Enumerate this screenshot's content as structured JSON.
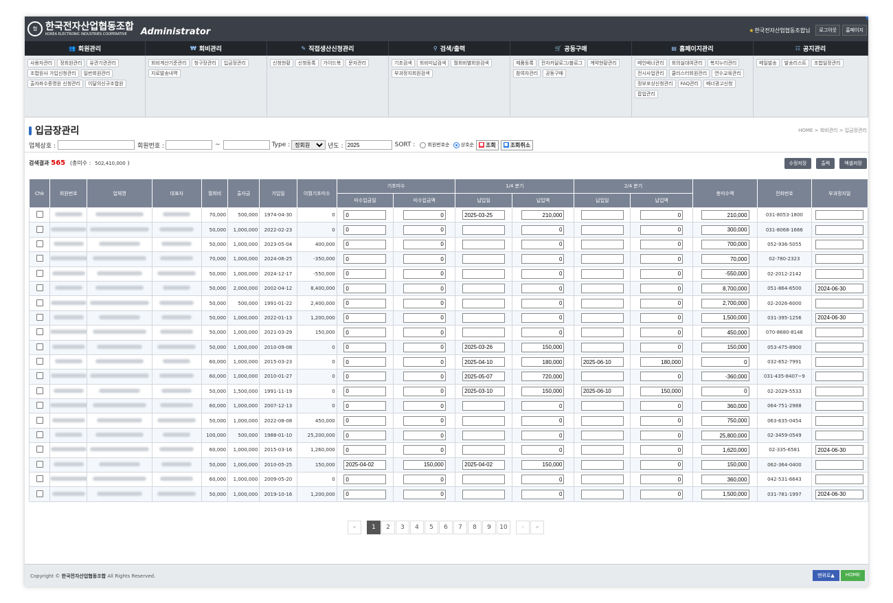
{
  "header": {
    "org_kor": "한국전자산업협동조합",
    "org_eng": "KOREA ELECTRONIC INDUSTRIES COOPERATIVE",
    "logo_mark": "협",
    "admin": "Administrator",
    "user": "한국전자산업협동조합님",
    "logout": "로그아웃",
    "home": "홈페이지"
  },
  "nav": [
    {
      "label": "회원관리",
      "icon": "users-icon",
      "glyph": "👥",
      "w": 176,
      "items": [
        {
          "t": "사용자관리"
        },
        {
          "t": "정회원관리"
        },
        {
          "t": "유관기관관리"
        },
        {
          "t": "조합원사 가입신청관리"
        },
        {
          "t": "일반회원관리"
        },
        {
          "t": "출자좌수증명원 신청관리"
        },
        {
          "t": "이달의신규조합원"
        }
      ]
    },
    {
      "label": "회비관리",
      "icon": "money-icon",
      "glyph": "₩",
      "w": 177,
      "items": [
        {
          "t": "회비계산기준관리"
        },
        {
          "t": "청구장관리"
        },
        {
          "t": "입금장관리"
        },
        {
          "t": "지로발송내역"
        }
      ]
    },
    {
      "label": "직접생산신청관리",
      "icon": "pencil-icon",
      "glyph": "✎",
      "w": 177,
      "items": [
        {
          "t": "신청현황"
        },
        {
          "t": "신청등록"
        },
        {
          "t": "가이드북"
        },
        {
          "t": "문자관리"
        }
      ]
    },
    {
      "label": "검색/출력",
      "icon": "search-icon",
      "glyph": "⚲",
      "w": 177,
      "items": [
        {
          "t": "기초검색"
        },
        {
          "t": "회비미납검색"
        },
        {
          "t": "월회비별회원검색"
        },
        {
          "t": "부과정지회원검색"
        }
      ]
    },
    {
      "label": "공동구매",
      "icon": "cart-icon",
      "glyph": "🛒",
      "w": 177,
      "items": [
        {
          "t": "제품등록"
        },
        {
          "t": "전자카달로그/블로그"
        },
        {
          "t": "계약현황관리"
        },
        {
          "t": "참여자관리"
        },
        {
          "t": "공동구매"
        }
      ]
    },
    {
      "label": "홈페이지관리",
      "icon": "monitor-icon",
      "glyph": "▤",
      "w": 177,
      "items": [
        {
          "t": "메인배너관리"
        },
        {
          "t": "회의실대여관리"
        },
        {
          "t": "복지누리관리"
        },
        {
          "t": "전시사업관리"
        },
        {
          "t": "클러스터회원관리"
        },
        {
          "t": "연수교육관리"
        },
        {
          "t": "정부포상신청관리"
        },
        {
          "t": "FAQ관리"
        },
        {
          "t": "배너광고신청",
          "badge": "2"
        },
        {
          "t": "팝업관리"
        }
      ]
    },
    {
      "label": "공지관리",
      "icon": "list-icon",
      "glyph": "☷",
      "w": 167,
      "items": [
        {
          "t": "메일발송"
        },
        {
          "t": "발송리스트"
        },
        {
          "t": "조합일정관리"
        }
      ]
    }
  ],
  "page": {
    "title": "입금장관리",
    "breadcrumb": "HOME  >  회비관리  >  입금장관리"
  },
  "search": {
    "company_label": "업체상호 :",
    "member_no_label": "회원번호 :",
    "tilde": "~",
    "type_label": "Type :",
    "type_value": "정회원",
    "year_label": "년도 :",
    "year_value": "2025",
    "sort_label": "SORT :",
    "sort_opt1": "회원번호순",
    "sort_opt2": "상호순",
    "query_btn": "조회",
    "cancel_btn": "조회취소"
  },
  "result": {
    "label": "검색결과",
    "count": "565",
    "unpaid_label": "(총미수 :",
    "unpaid_value": "502,410,000",
    "unpaid_close": ")",
    "btn_save": "수정저장",
    "btn_print": "출력",
    "btn_excel": "엑셀저장"
  },
  "table": {
    "h": {
      "chk": "Chk",
      "no": "회원번호",
      "company": "업체명",
      "ceo": "대표자",
      "monthly": "월회비",
      "invest": "출자금",
      "joined": "가입일",
      "carry": "이월기초미수",
      "grp_base": "기초미수",
      "base_date": "미수입금일",
      "base_amt": "미수입금액",
      "grp_q1": "1/4 분기",
      "q1_date": "납입일",
      "q1_amt": "납입액",
      "grp_q2": "2/4 분기",
      "q2_date": "납입일",
      "q2_amt": "납입액",
      "total": "총미수액",
      "phone": "전화번호",
      "stop": "부과정지일"
    },
    "rows": [
      {
        "m": "70,000",
        "i": "500,000",
        "j": "1974-04-30",
        "c": "0",
        "bd": "0",
        "ba": "0",
        "q1d": "2025-03-25",
        "q1a": "210,000",
        "q2d": "",
        "q2a": "0",
        "t": "210,000",
        "p": "031-8053-1800",
        "s": ""
      },
      {
        "m": "50,000",
        "i": "1,000,000",
        "j": "2022-02-23",
        "c": "0",
        "bd": "0",
        "ba": "0",
        "q1d": "",
        "q1a": "0",
        "q2d": "",
        "q2a": "0",
        "t": "300,000",
        "p": "031-8068-1666",
        "s": ""
      },
      {
        "m": "50,000",
        "i": "1,000,000",
        "j": "2023-05-04",
        "c": "400,000",
        "bd": "0",
        "ba": "0",
        "q1d": "",
        "q1a": "0",
        "q2d": "",
        "q2a": "0",
        "t": "700,000",
        "p": "052-936-5055",
        "s": ""
      },
      {
        "m": "70,000",
        "i": "1,000,000",
        "j": "2024-06-25",
        "c": "-350,000",
        "bd": "0",
        "ba": "0",
        "q1d": "",
        "q1a": "0",
        "q2d": "",
        "q2a": "0",
        "t": "70,000",
        "p": "02-780-2323",
        "s": ""
      },
      {
        "m": "50,000",
        "i": "1,000,000",
        "j": "2024-12-17",
        "c": "-550,000",
        "bd": "0",
        "ba": "0",
        "q1d": "",
        "q1a": "0",
        "q2d": "",
        "q2a": "0",
        "t": "-550,000",
        "p": "02-2012-2142",
        "s": ""
      },
      {
        "m": "50,000",
        "i": "2,000,000",
        "j": "2002-04-12",
        "c": "8,400,000",
        "bd": "0",
        "ba": "0",
        "q1d": "",
        "q1a": "0",
        "q2d": "",
        "q2a": "0",
        "t": "8,700,000",
        "p": "051-864-6500",
        "s": "2024-06-30"
      },
      {
        "m": "50,000",
        "i": "500,000",
        "j": "1991-01-22",
        "c": "2,400,000",
        "bd": "0",
        "ba": "0",
        "q1d": "",
        "q1a": "0",
        "q2d": "",
        "q2a": "0",
        "t": "2,700,000",
        "p": "02-2026-6000",
        "s": ""
      },
      {
        "m": "50,000",
        "i": "1,000,000",
        "j": "2022-01-13",
        "c": "1,200,000",
        "bd": "0",
        "ba": "0",
        "q1d": "",
        "q1a": "0",
        "q2d": "",
        "q2a": "0",
        "t": "1,500,000",
        "p": "031-395-1256",
        "s": "2024-06-30"
      },
      {
        "m": "50,000",
        "i": "1,000,000",
        "j": "2021-03-29",
        "c": "150,000",
        "bd": "0",
        "ba": "0",
        "q1d": "",
        "q1a": "0",
        "q2d": "",
        "q2a": "0",
        "t": "450,000",
        "p": "070-8680-8146",
        "s": ""
      },
      {
        "m": "50,000",
        "i": "1,000,000",
        "j": "2010-09-08",
        "c": "0",
        "bd": "0",
        "ba": "0",
        "q1d": "2025-03-26",
        "q1a": "150,000",
        "q2d": "",
        "q2a": "0",
        "t": "150,000",
        "p": "053-475-8900",
        "s": ""
      },
      {
        "m": "60,000",
        "i": "1,000,000",
        "j": "2015-03-23",
        "c": "0",
        "bd": "0",
        "ba": "0",
        "q1d": "2025-04-10",
        "q1a": "180,000",
        "q2d": "2025-06-10",
        "q2a": "180,000",
        "t": "0",
        "p": "032-652-7991",
        "s": ""
      },
      {
        "m": "60,000",
        "i": "1,000,000",
        "j": "2010-01-27",
        "c": "0",
        "bd": "0",
        "ba": "0",
        "q1d": "2025-05-07",
        "q1a": "720,000",
        "q2d": "",
        "q2a": "0",
        "t": "-360,000",
        "p": "031-435-8407~9",
        "s": ""
      },
      {
        "m": "50,000",
        "i": "1,500,000",
        "j": "1991-11-19",
        "c": "0",
        "bd": "0",
        "ba": "0",
        "q1d": "2025-03-10",
        "q1a": "150,000",
        "q2d": "2025-06-10",
        "q2a": "150,000",
        "t": "0",
        "p": "02-2029-5533",
        "s": ""
      },
      {
        "m": "60,000",
        "i": "1,000,000",
        "j": "2007-12-13",
        "c": "0",
        "bd": "0",
        "ba": "0",
        "q1d": "",
        "q1a": "0",
        "q2d": "",
        "q2a": "0",
        "t": "360,000",
        "p": "064-751-2988",
        "s": ""
      },
      {
        "m": "50,000",
        "i": "1,000,000",
        "j": "2022-08-08",
        "c": "450,000",
        "bd": "0",
        "ba": "0",
        "q1d": "",
        "q1a": "0",
        "q2d": "",
        "q2a": "0",
        "t": "750,000",
        "p": "063-635-0454",
        "s": ""
      },
      {
        "m": "100,000",
        "i": "500,000",
        "j": "1988-01-10",
        "c": "25,200,000",
        "bd": "0",
        "ba": "0",
        "q1d": "",
        "q1a": "0",
        "q2d": "",
        "q2a": "0",
        "t": "25,800,000",
        "p": "02-3459-0549",
        "s": ""
      },
      {
        "m": "60,000",
        "i": "1,000,000",
        "j": "2015-03-16",
        "c": "1,260,000",
        "bd": "0",
        "ba": "0",
        "q1d": "",
        "q1a": "0",
        "q2d": "",
        "q2a": "0",
        "t": "1,620,000",
        "p": "02-335-6581",
        "s": "2024-06-30"
      },
      {
        "m": "50,000",
        "i": "1,000,000",
        "j": "2010-05-25",
        "c": "150,000",
        "bd": "2025-04-02",
        "ba": "150,000",
        "q1d": "2025-04-02",
        "q1a": "150,000",
        "q2d": "",
        "q2a": "0",
        "t": "150,000",
        "p": "062-364-0400",
        "s": ""
      },
      {
        "m": "60,000",
        "i": "1,000,000",
        "j": "2009-05-20",
        "c": "0",
        "bd": "0",
        "ba": "0",
        "q1d": "",
        "q1a": "0",
        "q2d": "",
        "q2a": "0",
        "t": "360,000",
        "p": "042-531-6643",
        "s": ""
      },
      {
        "m": "50,000",
        "i": "1,000,000",
        "j": "2019-10-16",
        "c": "1,200,000",
        "bd": "0",
        "ba": "0",
        "q1d": "",
        "q1a": "0",
        "q2d": "",
        "q2a": "0",
        "t": "1,500,000",
        "p": "031-781-1997",
        "s": "2024-06-30"
      }
    ]
  },
  "pager": {
    "first": "«",
    "prev": "‹",
    "pages": [
      "1",
      "2",
      "3",
      "4",
      "5",
      "6",
      "7",
      "8",
      "9",
      "10"
    ],
    "current": "1",
    "next": "›",
    "last": "»"
  },
  "footer": {
    "copy": "Copyright ©",
    "org": "한국전자산업협동조합",
    "rights": "All Rights Reserved.",
    "top": "맨위로▲",
    "home": "HOME"
  },
  "colors": {
    "accent": "#2d6cc0",
    "red": "#dd0000",
    "header_th": "#7a8394",
    "topbar": "#3b4048"
  }
}
